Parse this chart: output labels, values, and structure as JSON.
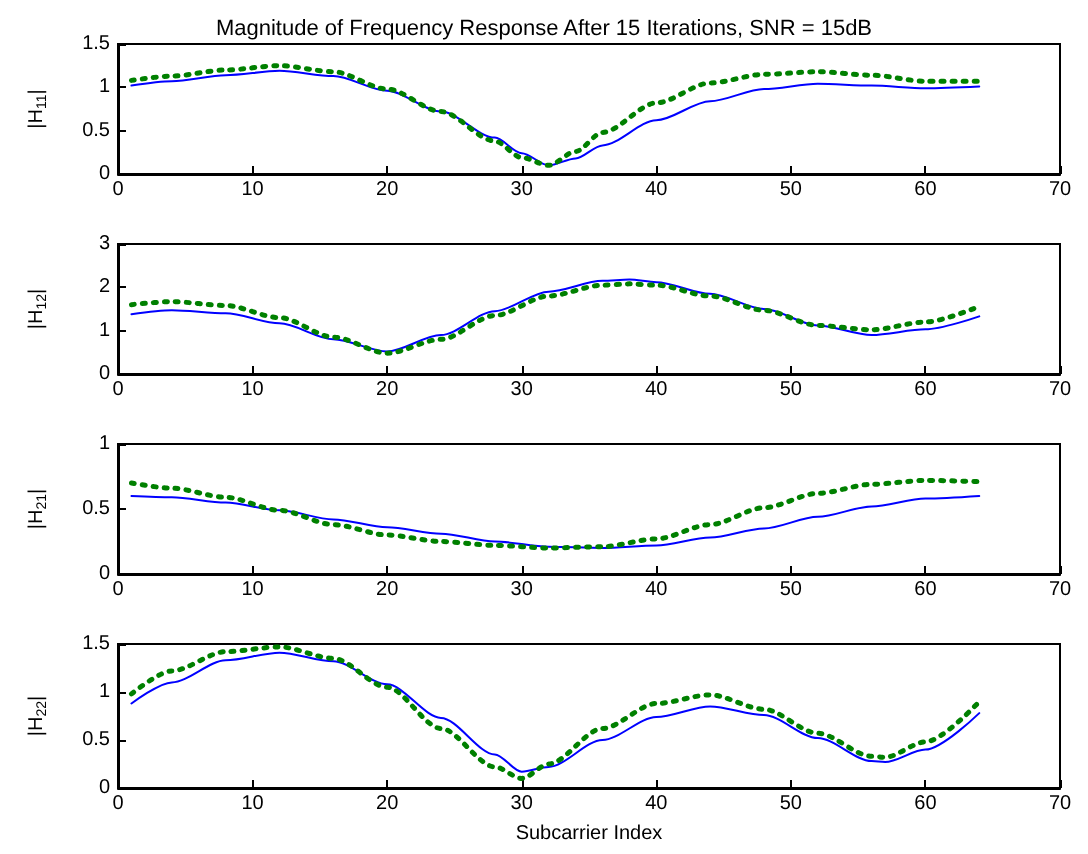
{
  "chart_data": [
    {
      "type": "line",
      "title": "Magnitude of Frequency Response After 15 Iterations, SNR = 15dB",
      "ylabel": "|H$_{11}$|",
      "x": [
        1,
        4,
        8,
        12,
        16,
        20,
        24,
        28,
        30,
        32,
        34,
        36,
        40,
        44,
        48,
        52,
        56,
        60,
        64
      ],
      "xlim": [
        0,
        70
      ],
      "xticks": [
        0,
        10,
        20,
        30,
        40,
        50,
        60,
        70
      ],
      "ylim": [
        0,
        1.5
      ],
      "yticks": [
        0,
        0.5,
        1,
        1.5
      ],
      "series": [
        {
          "color": "#0000ff",
          "line_style": "solid",
          "values": [
            1.02,
            1.07,
            1.14,
            1.19,
            1.13,
            0.96,
            0.72,
            0.42,
            0.24,
            0.1,
            0.18,
            0.33,
            0.62,
            0.84,
            0.98,
            1.04,
            1.02,
            0.99,
            1.01
          ]
        },
        {
          "color": "#008000",
          "line_style": "dotted",
          "values": [
            1.08,
            1.13,
            1.2,
            1.25,
            1.18,
            0.98,
            0.72,
            0.38,
            0.19,
            0.1,
            0.26,
            0.48,
            0.82,
            1.05,
            1.15,
            1.18,
            1.14,
            1.07,
            1.07
          ]
        }
      ]
    },
    {
      "type": "line",
      "ylabel": "|H$_{12}$|",
      "x": [
        1,
        4,
        8,
        12,
        16,
        20,
        24,
        28,
        32,
        36,
        38,
        40,
        44,
        48,
        52,
        56,
        60,
        64
      ],
      "xlim": [
        0,
        70
      ],
      "xticks": [
        0,
        10,
        20,
        30,
        40,
        50,
        60,
        70
      ],
      "ylim": [
        0,
        3
      ],
      "yticks": [
        0,
        1,
        2,
        3
      ],
      "series": [
        {
          "color": "#0000ff",
          "line_style": "solid",
          "values": [
            1.38,
            1.47,
            1.4,
            1.17,
            0.8,
            0.52,
            0.9,
            1.45,
            1.9,
            2.15,
            2.18,
            2.12,
            1.85,
            1.5,
            1.12,
            0.9,
            1.03,
            1.33
          ]
        },
        {
          "color": "#008000",
          "line_style": "dotted",
          "values": [
            1.6,
            1.67,
            1.58,
            1.3,
            0.85,
            0.48,
            0.8,
            1.35,
            1.8,
            2.05,
            2.08,
            2.05,
            1.8,
            1.47,
            1.12,
            1.02,
            1.2,
            1.56
          ]
        }
      ]
    },
    {
      "type": "line",
      "ylabel": "|H$_{21}$|",
      "x": [
        1,
        4,
        8,
        12,
        16,
        20,
        24,
        28,
        32,
        36,
        40,
        44,
        48,
        52,
        56,
        60,
        64
      ],
      "xlim": [
        0,
        70
      ],
      "xticks": [
        0,
        10,
        20,
        30,
        40,
        50,
        60,
        70
      ],
      "ylim": [
        0,
        1
      ],
      "yticks": [
        0,
        0.5,
        1
      ],
      "series": [
        {
          "color": "#0000ff",
          "line_style": "solid",
          "values": [
            0.6,
            0.59,
            0.55,
            0.49,
            0.42,
            0.36,
            0.31,
            0.25,
            0.21,
            0.2,
            0.22,
            0.28,
            0.35,
            0.44,
            0.52,
            0.58,
            0.6
          ]
        },
        {
          "color": "#008000",
          "line_style": "dotted",
          "values": [
            0.7,
            0.66,
            0.59,
            0.49,
            0.38,
            0.3,
            0.25,
            0.22,
            0.2,
            0.21,
            0.27,
            0.38,
            0.51,
            0.62,
            0.69,
            0.72,
            0.71
          ]
        }
      ]
    },
    {
      "type": "line",
      "ylabel": "|H$_{22}$|",
      "xlabel": "Subcarrier Index",
      "x": [
        1,
        4,
        8,
        12,
        16,
        20,
        24,
        28,
        30,
        32,
        36,
        40,
        44,
        48,
        52,
        56,
        57,
        60,
        64
      ],
      "xlim": [
        0,
        70
      ],
      "xticks": [
        0,
        10,
        20,
        30,
        40,
        50,
        60,
        70
      ],
      "ylim": [
        0,
        1.5
      ],
      "yticks": [
        0,
        0.5,
        1,
        1.5
      ],
      "series": [
        {
          "color": "#0000ff",
          "line_style": "solid",
          "values": [
            0.88,
            1.1,
            1.33,
            1.41,
            1.32,
            1.08,
            0.73,
            0.35,
            0.17,
            0.22,
            0.5,
            0.74,
            0.85,
            0.76,
            0.52,
            0.28,
            0.27,
            0.4,
            0.78
          ]
        },
        {
          "color": "#008000",
          "line_style": "dotted",
          "values": [
            0.98,
            1.22,
            1.42,
            1.47,
            1.35,
            1.05,
            0.62,
            0.22,
            0.1,
            0.25,
            0.62,
            0.88,
            0.97,
            0.82,
            0.57,
            0.33,
            0.32,
            0.48,
            0.9
          ]
        }
      ]
    }
  ]
}
